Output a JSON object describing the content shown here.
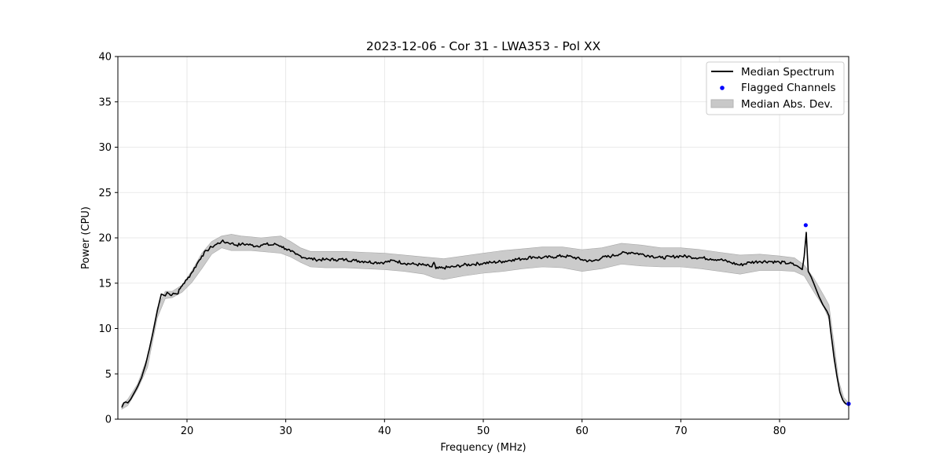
{
  "chart_data": {
    "type": "line",
    "title": "2023-12-06 - Cor 31 - LWA353 - Pol XX",
    "xlabel": "Frequency (MHz)",
    "ylabel": "Power (CPU)",
    "xlim": [
      13,
      87
    ],
    "ylim": [
      0,
      40
    ],
    "xticks": [
      20,
      30,
      40,
      50,
      60,
      70,
      80
    ],
    "yticks": [
      0,
      5,
      10,
      15,
      20,
      25,
      30,
      35,
      40
    ],
    "grid": true,
    "legend_position": "top-right",
    "series": [
      {
        "name": "Median Spectrum",
        "style": "line",
        "color": "#000000",
        "x": [
          13.4,
          13.6,
          13.8,
          14.0,
          14.3,
          14.6,
          15.0,
          15.4,
          15.8,
          16.2,
          16.6,
          17.0,
          17.4,
          17.8,
          18.0,
          18.3,
          18.6,
          19.0,
          19.3,
          19.6,
          20.0,
          20.5,
          21.0,
          21.5,
          22.0,
          22.5,
          23.0,
          23.5,
          24.0,
          24.5,
          25.0,
          25.5,
          26.0,
          26.5,
          27.0,
          27.5,
          28.0,
          28.5,
          29.0,
          29.5,
          30.0,
          30.5,
          31.0,
          31.5,
          32.0,
          32.5,
          33.0,
          34.0,
          35.0,
          36.0,
          37.0,
          38.0,
          39.0,
          40.0,
          41.0,
          42.0,
          43.0,
          44.0,
          44.8,
          45.0,
          45.2,
          46.0,
          47.0,
          48.0,
          49.0,
          50.0,
          51.0,
          52.0,
          53.0,
          54.0,
          55.0,
          56.0,
          57.0,
          58.0,
          59.0,
          60.0,
          61.0,
          62.0,
          63.0,
          64.0,
          65.0,
          66.0,
          67.0,
          68.0,
          69.0,
          70.0,
          71.0,
          72.0,
          73.0,
          74.0,
          75.0,
          76.0,
          77.0,
          78.0,
          79.0,
          80.0,
          81.0,
          81.8,
          82.3,
          82.5,
          82.7,
          82.9,
          83.2,
          83.6,
          84.0,
          84.4,
          84.8,
          85.0,
          85.2,
          85.5,
          85.8,
          86.1,
          86.4,
          86.7,
          87.0
        ],
        "y": [
          1.3,
          1.8,
          1.9,
          1.8,
          2.2,
          2.8,
          3.6,
          4.6,
          6.0,
          7.8,
          9.8,
          12.0,
          13.8,
          13.6,
          14.0,
          13.7,
          13.9,
          13.8,
          14.4,
          14.9,
          15.4,
          16.2,
          17.1,
          18.0,
          18.6,
          19.0,
          19.3,
          19.6,
          19.5,
          19.4,
          19.2,
          19.3,
          19.3,
          19.2,
          19.1,
          19.2,
          19.3,
          19.2,
          19.3,
          19.1,
          18.8,
          18.5,
          18.2,
          18.0,
          17.8,
          17.7,
          17.6,
          17.6,
          17.6,
          17.6,
          17.5,
          17.4,
          17.3,
          17.3,
          17.5,
          17.2,
          17.1,
          17.0,
          16.8,
          17.3,
          16.6,
          16.7,
          16.8,
          17.0,
          17.1,
          17.2,
          17.3,
          17.4,
          17.6,
          17.7,
          17.9,
          17.8,
          17.9,
          18.0,
          17.9,
          17.6,
          17.4,
          17.8,
          18.0,
          18.3,
          18.4,
          18.2,
          18.0,
          17.8,
          17.9,
          18.0,
          17.9,
          17.8,
          17.7,
          17.6,
          17.3,
          17.0,
          17.3,
          17.4,
          17.4,
          17.3,
          17.2,
          16.9,
          16.5,
          18.0,
          20.6,
          16.3,
          15.7,
          14.6,
          13.5,
          12.6,
          11.9,
          11.4,
          9.5,
          7.0,
          4.8,
          3.0,
          2.1,
          1.7,
          1.6
        ]
      },
      {
        "name": "Flagged Channels",
        "style": "scatter",
        "color": "#0000ff",
        "x": [
          82.65,
          87.0
        ],
        "y": [
          21.4,
          1.7
        ]
      },
      {
        "name": "Median Abs. Dev.",
        "style": "band",
        "color": "#c8c8c8",
        "x": [
          13.4,
          14.0,
          15.0,
          16.0,
          17.0,
          17.8,
          18.5,
          19.5,
          20.5,
          21.5,
          22.5,
          23.5,
          24.5,
          25.5,
          26.5,
          27.5,
          28.5,
          29.5,
          30.5,
          31.5,
          32.5,
          34.0,
          36.0,
          38.0,
          40.0,
          42.0,
          44.0,
          45.0,
          46.0,
          48.0,
          50.0,
          52.0,
          54.0,
          56.0,
          58.0,
          60.0,
          62.0,
          64.0,
          66.0,
          68.0,
          70.0,
          72.0,
          74.0,
          76.0,
          78.0,
          80.0,
          81.5,
          82.5,
          83.5,
          84.5,
          85.0,
          85.5,
          86.0,
          86.5,
          87.0
        ],
        "upper": [
          1.6,
          2.2,
          3.9,
          6.9,
          12.3,
          14.1,
          14.1,
          14.8,
          16.4,
          18.3,
          19.6,
          20.2,
          20.4,
          20.2,
          20.1,
          20.0,
          20.1,
          20.2,
          19.6,
          18.9,
          18.5,
          18.5,
          18.5,
          18.4,
          18.3,
          18.1,
          17.9,
          17.8,
          17.7,
          18.0,
          18.3,
          18.6,
          18.8,
          19.0,
          19.0,
          18.7,
          18.9,
          19.4,
          19.2,
          18.9,
          18.9,
          18.7,
          18.4,
          18.1,
          18.2,
          18.0,
          17.8,
          17.0,
          15.5,
          13.6,
          12.6,
          8.5,
          4.2,
          2.4,
          1.8
        ],
        "lower": [
          1.1,
          1.5,
          3.3,
          5.7,
          11.2,
          13.3,
          13.4,
          14.0,
          15.1,
          16.6,
          18.2,
          18.9,
          18.6,
          18.6,
          18.6,
          18.5,
          18.4,
          18.3,
          17.9,
          17.3,
          16.8,
          16.7,
          16.7,
          16.6,
          16.5,
          16.3,
          16.0,
          15.6,
          15.4,
          15.8,
          16.1,
          16.3,
          16.6,
          16.8,
          16.7,
          16.3,
          16.6,
          17.1,
          16.9,
          16.8,
          16.8,
          16.6,
          16.3,
          16.0,
          16.4,
          16.4,
          16.3,
          15.8,
          14.0,
          12.3,
          11.0,
          6.5,
          3.5,
          1.8,
          1.4
        ]
      }
    ]
  }
}
